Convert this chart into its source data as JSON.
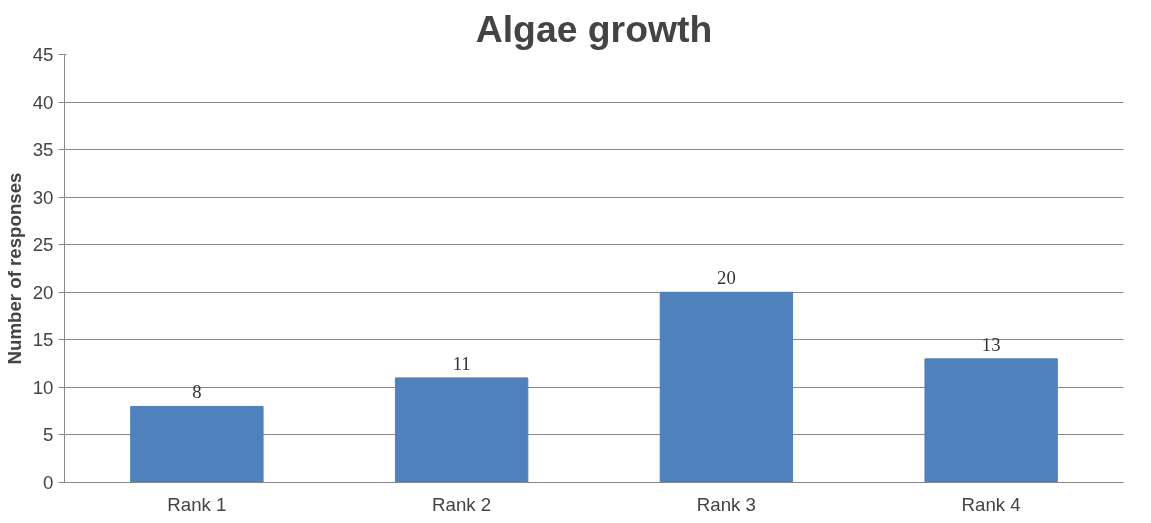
{
  "chart_data": {
    "type": "bar",
    "title": "Algae growth",
    "ylabel": "Number of responses",
    "categories": [
      "Rank 1",
      "Rank 2",
      "Rank 3",
      "Rank 4"
    ],
    "values": [
      8,
      11,
      20,
      13
    ],
    "color": "#4f81bd",
    "ylim": [
      0,
      45
    ],
    "yticks": [
      0,
      5,
      10,
      15,
      20,
      25,
      30,
      35,
      40,
      45
    ],
    "grid": "y",
    "data_labels": true
  }
}
